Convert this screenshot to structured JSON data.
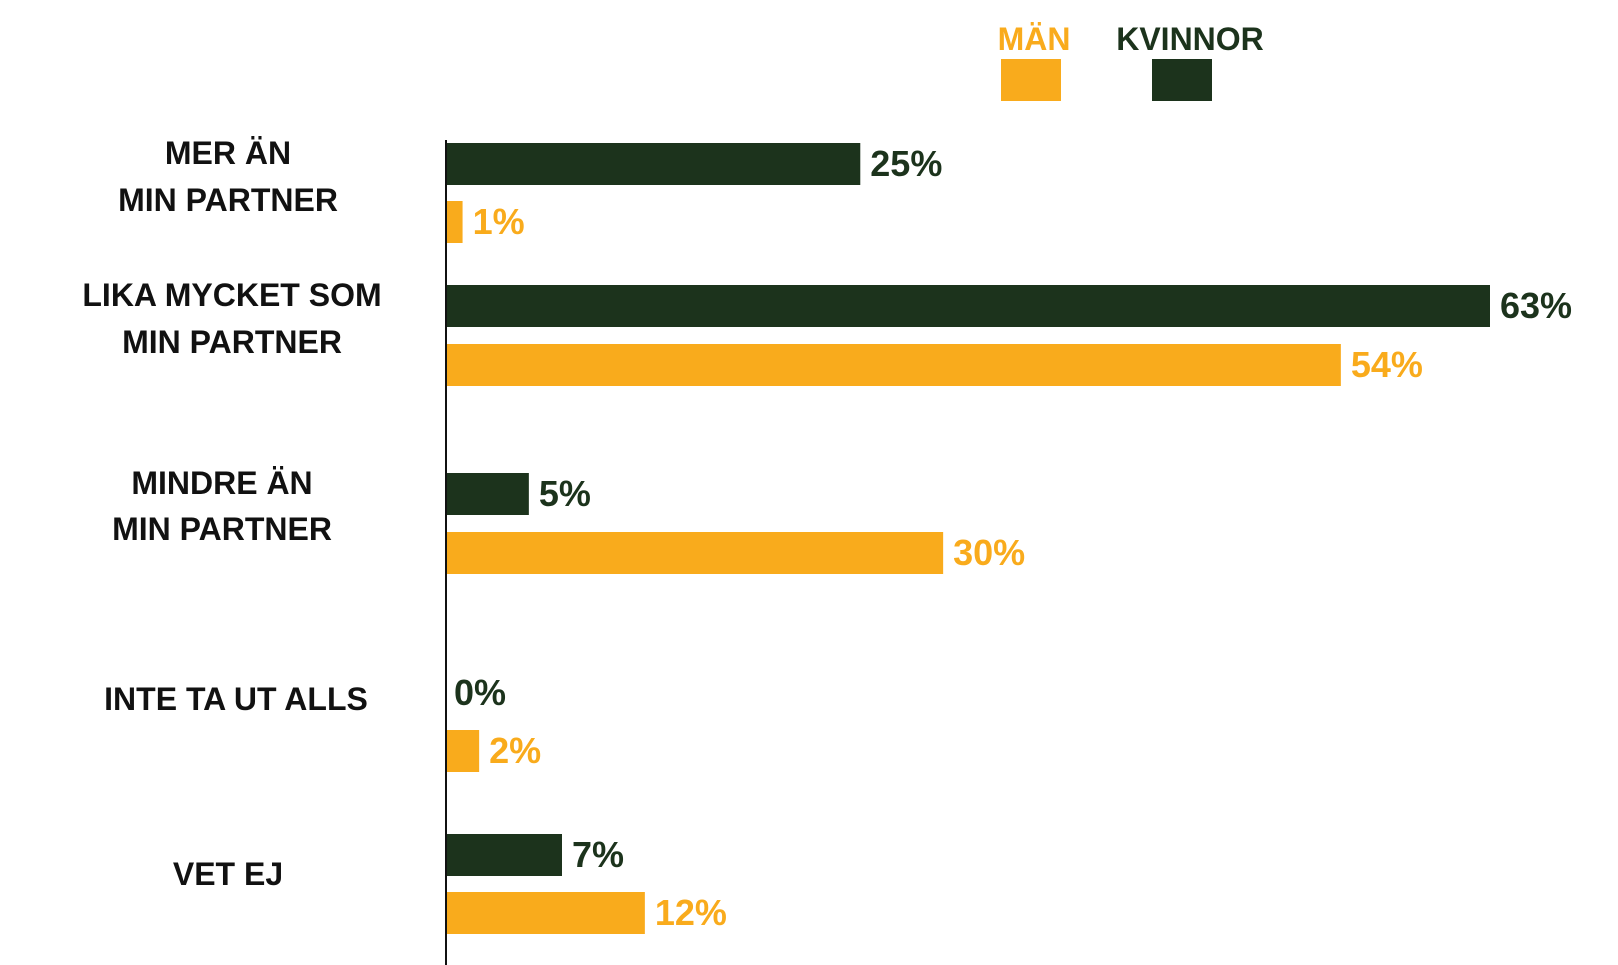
{
  "chart_data": {
    "type": "bar",
    "orientation": "horizontal",
    "categories": [
      [
        "MER ÄN",
        "MIN PARTNER"
      ],
      [
        "LIKA MYCKET SOM",
        "MIN PARTNER"
      ],
      [
        "MINDRE ÄN",
        "MIN PARTNER"
      ],
      [
        "INTE TA UT ALLS"
      ],
      [
        "VET EJ"
      ]
    ],
    "series": [
      {
        "name": "KVINNOR",
        "color": "#1c331c",
        "values": [
          25,
          63,
          5,
          0,
          7
        ],
        "labels": [
          "25%",
          "63%",
          "5%",
          "0%",
          "7%"
        ]
      },
      {
        "name": "MÄN",
        "color": "#f9ab1c",
        "values": [
          1,
          54,
          30,
          2,
          12
        ],
        "labels": [
          "1%",
          "54%",
          "30%",
          "2%",
          "12%"
        ]
      }
    ],
    "legend": {
      "position": "top-right",
      "order": [
        "MÄN",
        "KVINNOR"
      ]
    },
    "xlim": [
      0,
      63
    ],
    "grid": false,
    "title": "",
    "xlabel": "",
    "ylabel": ""
  }
}
